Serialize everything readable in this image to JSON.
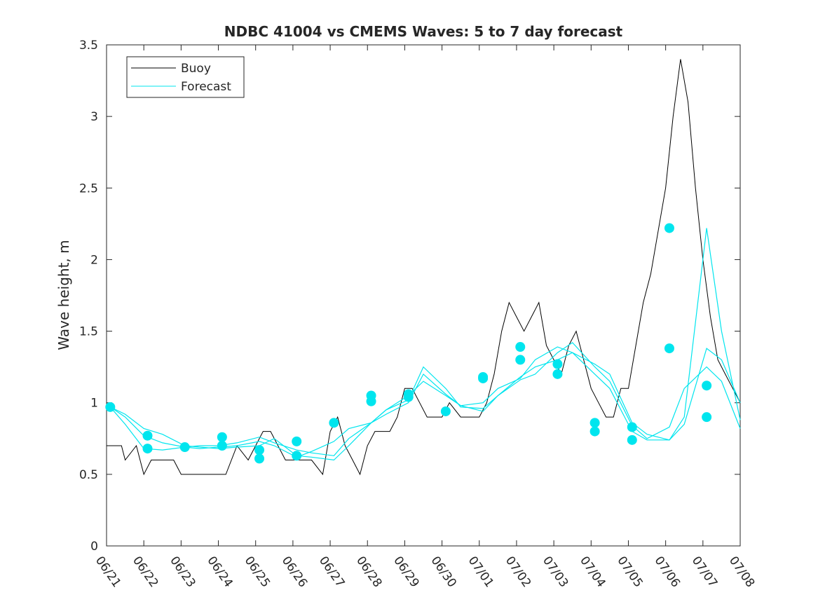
{
  "chart_data": {
    "type": "line",
    "title": "NDBC 41004 vs CMEMS Waves: 5 to 7 day forecast",
    "xlabel": "",
    "ylabel": "Wave height, m",
    "xlim": [
      "06/21",
      "07/08"
    ],
    "ylim": [
      0,
      3.5
    ],
    "x_unit": "days (date axis, 06/21 to 07/08)",
    "xticks": [
      "06/21",
      "06/22",
      "06/23",
      "06/24",
      "06/25",
      "06/26",
      "06/27",
      "06/28",
      "06/29",
      "06/30",
      "07/01",
      "07/02",
      "07/03",
      "07/04",
      "07/05",
      "07/06",
      "07/07",
      "07/08"
    ],
    "yticks": [
      "0",
      "0.5",
      "1",
      "1.5",
      "2",
      "2.5",
      "3",
      "3.5"
    ],
    "grid": false,
    "legend_position": "top-left",
    "legend": [
      {
        "label": "Buoy",
        "color": "#000000"
      },
      {
        "label": "Forecast",
        "color": "#00e5ee"
      }
    ],
    "series": [
      {
        "name": "Buoy",
        "color": "#000000",
        "x": [
          0,
          0.3,
          0.4,
          0.5,
          0.8,
          1.0,
          1.2,
          1.5,
          1.8,
          2.0,
          2.5,
          3.0,
          3.2,
          3.5,
          3.8,
          4.0,
          4.2,
          4.4,
          4.6,
          4.8,
          5.0,
          5.3,
          5.5,
          5.8,
          6.0,
          6.2,
          6.4,
          6.6,
          6.8,
          7.0,
          7.2,
          7.4,
          7.6,
          7.8,
          8.0,
          8.2,
          8.4,
          8.6,
          8.8,
          9.0,
          9.2,
          9.5,
          9.8,
          10.0,
          10.2,
          10.4,
          10.6,
          10.8,
          11.0,
          11.2,
          11.4,
          11.6,
          11.8,
          12.0,
          12.2,
          12.4,
          12.6,
          12.8,
          13.0,
          13.2,
          13.4,
          13.6,
          13.8,
          14.0,
          14.2,
          14.4,
          14.6,
          14.8,
          15.0,
          15.2,
          15.4,
          15.6,
          15.8,
          16.0,
          16.2,
          16.4,
          16.6,
          16.8,
          17.0
        ],
        "y": [
          0.7,
          0.7,
          0.7,
          0.6,
          0.7,
          0.5,
          0.6,
          0.6,
          0.6,
          0.5,
          0.5,
          0.5,
          0.5,
          0.7,
          0.6,
          0.7,
          0.8,
          0.8,
          0.7,
          0.6,
          0.6,
          0.6,
          0.6,
          0.5,
          0.8,
          0.9,
          0.7,
          0.6,
          0.5,
          0.7,
          0.8,
          0.8,
          0.8,
          0.9,
          1.1,
          1.1,
          1.0,
          0.9,
          0.9,
          0.9,
          1.0,
          0.9,
          0.9,
          0.9,
          1.0,
          1.2,
          1.5,
          1.7,
          1.6,
          1.5,
          1.6,
          1.7,
          1.4,
          1.3,
          1.2,
          1.4,
          1.5,
          1.3,
          1.1,
          1.0,
          0.9,
          0.9,
          1.1,
          1.1,
          1.4,
          1.7,
          1.9,
          2.2,
          2.5,
          3.0,
          3.4,
          3.1,
          2.5,
          2.0,
          1.6,
          1.3,
          1.2,
          1.1,
          1.0
        ]
      },
      {
        "name": "",
        "color": "#00e5ee",
        "x": [
          0.1,
          0.5,
          1.0,
          1.5,
          2.1,
          2.5,
          3.0,
          3.5,
          4.1,
          4.5,
          5.1,
          5.5,
          6.1,
          6.5,
          7.1,
          7.5,
          8.1,
          8.5,
          9.1,
          9.5,
          10.1,
          10.5,
          11.1,
          11.5,
          12.1,
          12.5,
          13.1,
          13.5,
          14.1,
          14.5,
          15.1,
          15.5,
          16.1,
          16.5,
          17.0
        ],
        "y": [
          0.97,
          0.9,
          0.77,
          0.72,
          0.69,
          0.68,
          0.69,
          0.7,
          0.73,
          0.7,
          0.62,
          0.66,
          0.73,
          0.82,
          0.86,
          0.95,
          1.05,
          1.15,
          1.05,
          0.98,
          1.0,
          1.1,
          1.17,
          1.3,
          1.39,
          1.35,
          1.27,
          1.2,
          0.86,
          0.78,
          0.74,
          0.85,
          1.38,
          1.3,
          1.0
        ]
      },
      {
        "name": "",
        "color": "#00e5ee",
        "x": [
          0.1,
          0.5,
          1.0,
          1.5,
          2.1,
          2.5,
          3.0,
          3.5,
          4.1,
          4.5,
          5.1,
          5.5,
          6.1,
          6.5,
          7.1,
          7.5,
          8.1,
          8.5,
          9.1,
          9.5,
          10.1,
          10.5,
          11.1,
          11.5,
          12.1,
          12.5,
          13.1,
          13.5,
          14.1,
          14.5,
          15.1,
          15.5,
          16.1,
          16.5,
          17.0
        ],
        "y": [
          0.97,
          0.85,
          0.68,
          0.67,
          0.69,
          0.7,
          0.7,
          0.72,
          0.76,
          0.72,
          0.67,
          0.65,
          0.63,
          0.75,
          0.86,
          0.92,
          1.0,
          1.2,
          1.06,
          0.98,
          0.94,
          1.05,
          1.18,
          1.25,
          1.3,
          1.35,
          1.2,
          1.1,
          0.8,
          0.74,
          0.74,
          0.9,
          2.22,
          1.5,
          0.88
        ]
      },
      {
        "name": "",
        "color": "#00e5ee",
        "x": [
          0.1,
          0.5,
          1.0,
          1.5,
          2.1,
          2.5,
          3.0,
          3.5,
          4.1,
          4.5,
          5.1,
          5.5,
          6.1,
          6.5,
          7.1,
          7.5,
          8.1,
          8.5,
          9.1,
          9.5,
          10.1,
          10.5,
          11.1,
          11.5,
          12.1,
          12.5,
          13.1,
          13.5,
          14.1,
          14.5,
          15.1,
          15.5,
          16.1,
          16.5,
          17.0
        ],
        "y": [
          0.97,
          0.92,
          0.82,
          0.78,
          0.7,
          0.69,
          0.68,
          0.69,
          0.7,
          0.75,
          0.63,
          0.62,
          0.6,
          0.7,
          0.86,
          0.95,
          1.02,
          1.25,
          1.1,
          0.97,
          0.96,
          1.05,
          1.16,
          1.2,
          1.35,
          1.42,
          1.25,
          1.15,
          0.84,
          0.75,
          0.83,
          1.1,
          1.25,
          1.15,
          0.82
        ]
      }
    ],
    "markers": {
      "color": "#00e5ee",
      "points": [
        {
          "x": 0.1,
          "y": 0.97
        },
        {
          "x": 1.1,
          "y": 0.77
        },
        {
          "x": 1.1,
          "y": 0.68
        },
        {
          "x": 2.1,
          "y": 0.69
        },
        {
          "x": 3.1,
          "y": 0.76
        },
        {
          "x": 3.1,
          "y": 0.7
        },
        {
          "x": 4.1,
          "y": 0.67
        },
        {
          "x": 4.1,
          "y": 0.61
        },
        {
          "x": 5.1,
          "y": 0.73
        },
        {
          "x": 5.1,
          "y": 0.63
        },
        {
          "x": 6.1,
          "y": 0.86
        },
        {
          "x": 7.1,
          "y": 1.05
        },
        {
          "x": 7.1,
          "y": 1.01
        },
        {
          "x": 8.1,
          "y": 1.06
        },
        {
          "x": 8.1,
          "y": 1.04
        },
        {
          "x": 9.1,
          "y": 0.94
        },
        {
          "x": 10.1,
          "y": 1.18
        },
        {
          "x": 10.1,
          "y": 1.17
        },
        {
          "x": 11.1,
          "y": 1.39
        },
        {
          "x": 11.1,
          "y": 1.3
        },
        {
          "x": 12.1,
          "y": 1.27
        },
        {
          "x": 12.1,
          "y": 1.2
        },
        {
          "x": 13.1,
          "y": 0.86
        },
        {
          "x": 13.1,
          "y": 0.8
        },
        {
          "x": 14.1,
          "y": 0.83
        },
        {
          "x": 14.1,
          "y": 0.74
        },
        {
          "x": 15.1,
          "y": 2.22
        },
        {
          "x": 15.1,
          "y": 1.38
        },
        {
          "x": 16.1,
          "y": 1.12
        },
        {
          "x": 16.1,
          "y": 0.9
        }
      ]
    }
  }
}
